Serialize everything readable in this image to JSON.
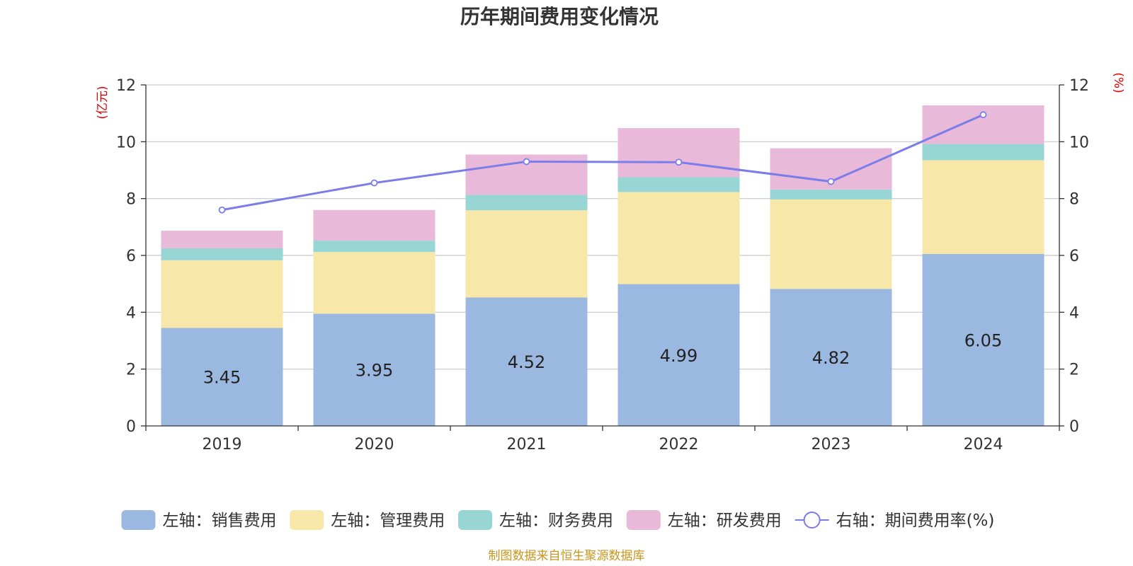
{
  "chart_data": {
    "type": "bar",
    "stacked": true,
    "title": "历年期间费用变化情况",
    "categories": [
      "2019",
      "2020",
      "2021",
      "2022",
      "2023",
      "2024"
    ],
    "left_axis": {
      "unit": "(亿元)",
      "ylim": [
        0,
        12
      ],
      "ticks": [
        "0",
        "2",
        "4",
        "6",
        "8",
        "10",
        "12"
      ]
    },
    "right_axis": {
      "unit": "(%)",
      "ylim": [
        0,
        12
      ],
      "ticks": [
        "0",
        "2",
        "4",
        "6",
        "8",
        "10",
        "12"
      ]
    },
    "series": [
      {
        "name": "左轴：销售费用",
        "type": "bar",
        "axis": "left",
        "color": "#9bb8e0",
        "values": [
          3.45,
          3.95,
          4.52,
          4.99,
          4.82,
          6.05
        ],
        "labels": [
          "3.45",
          "3.95",
          "4.52",
          "4.99",
          "4.82",
          "6.05"
        ]
      },
      {
        "name": "左轴：管理费用",
        "type": "bar",
        "axis": "left",
        "color": "#f7e7a8",
        "values": [
          2.38,
          2.17,
          3.07,
          3.24,
          3.15,
          3.3
        ]
      },
      {
        "name": "左轴：财务费用",
        "type": "bar",
        "axis": "left",
        "color": "#98d5d5",
        "values": [
          0.42,
          0.4,
          0.54,
          0.52,
          0.35,
          0.57
        ]
      },
      {
        "name": "左轴：研发费用",
        "type": "bar",
        "axis": "left",
        "color": "#e8b9d9",
        "values": [
          0.62,
          1.08,
          1.42,
          1.73,
          1.45,
          1.36
        ]
      },
      {
        "name": "右轴：期间费用率(%)",
        "type": "line",
        "axis": "right",
        "color": "#7b7de8",
        "values": [
          7.6,
          8.55,
          9.3,
          9.28,
          8.6,
          10.95
        ]
      }
    ],
    "grid": true,
    "legend_position": "bottom"
  },
  "footer": {
    "source": "制图数据来自恒生聚源数据库"
  }
}
